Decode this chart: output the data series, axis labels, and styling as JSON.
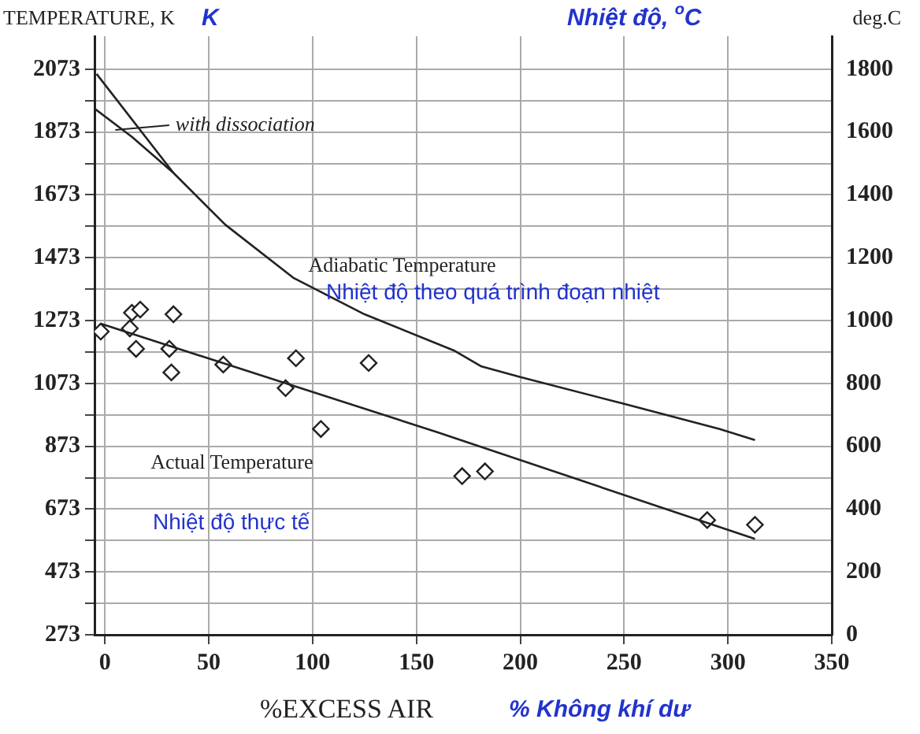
{
  "chart_data": {
    "type": "line",
    "ylabel": "TEMPERATURE, K",
    "y2label": "deg.C",
    "xlabel": "%EXCESS AIR",
    "annotations": [
      "K",
      "Nhiệt độ, $^{o}$C",
      "Nhiệt độ theo quá trình đoạn nhiệt",
      "Nhiệt độ thực tế",
      "% Không khí dư"
    ],
    "xlim": [
      -5,
      350
    ],
    "xticks": [
      0,
      50,
      100,
      150,
      200,
      250,
      300,
      350
    ],
    "ylim": [
      273,
      2178
    ],
    "yticks": [
      273,
      {
        "value": 373,
        "label": null
      },
      473,
      {
        "value": 573,
        "label": null
      },
      673,
      {
        "value": 773,
        "label": null
      },
      873,
      {
        "value": 973,
        "label": null
      },
      1073,
      {
        "value": 1173,
        "label": null
      },
      1273,
      {
        "value": 1373,
        "label": null
      },
      1473,
      {
        "value": 1573,
        "label": null
      },
      1673,
      {
        "value": 1773,
        "label": null
      },
      1873,
      {
        "value": 1973,
        "label": null
      },
      2073
    ],
    "y2lim": [
      0,
      1905
    ],
    "y2ticks": [
      0,
      200,
      400,
      600,
      800,
      1000,
      1200,
      1400,
      1600,
      1800
    ],
    "grid": true,
    "series": [
      {
        "name": "Adiabatic Temperature",
        "color": "#222222",
        "x": [
          -4,
          33,
          58,
          91,
          125,
          168,
          181,
          200,
          250,
          296,
          313
        ],
        "values": [
          2058,
          1743,
          1578,
          1408,
          1293,
          1178,
          1128,
          1093,
          1008,
          928,
          893
        ]
      },
      {
        "name": "with dissociation",
        "color": "#222222",
        "x": [
          -5,
          13,
          33
        ],
        "values": [
          1948,
          1858,
          1743
        ]
      },
      {
        "name": "Actual Temperature",
        "color": "#222222",
        "x": [
          -2,
          160,
          313
        ],
        "values": [
          1263,
          918,
          578
        ]
      },
      {
        "type": "scatter",
        "marker": "diamond",
        "color": "#222222",
        "x": [
          -2,
          13,
          17,
          12,
          33,
          15,
          31,
          32,
          57,
          92,
          127,
          87,
          104,
          172,
          183,
          290,
          313
        ],
        "values": [
          1238,
          1298,
          1308,
          1248,
          1293,
          1183,
          1183,
          1108,
          1133,
          1153,
          1138,
          1058,
          928,
          778,
          793,
          638,
          623
        ]
      }
    ]
  }
}
